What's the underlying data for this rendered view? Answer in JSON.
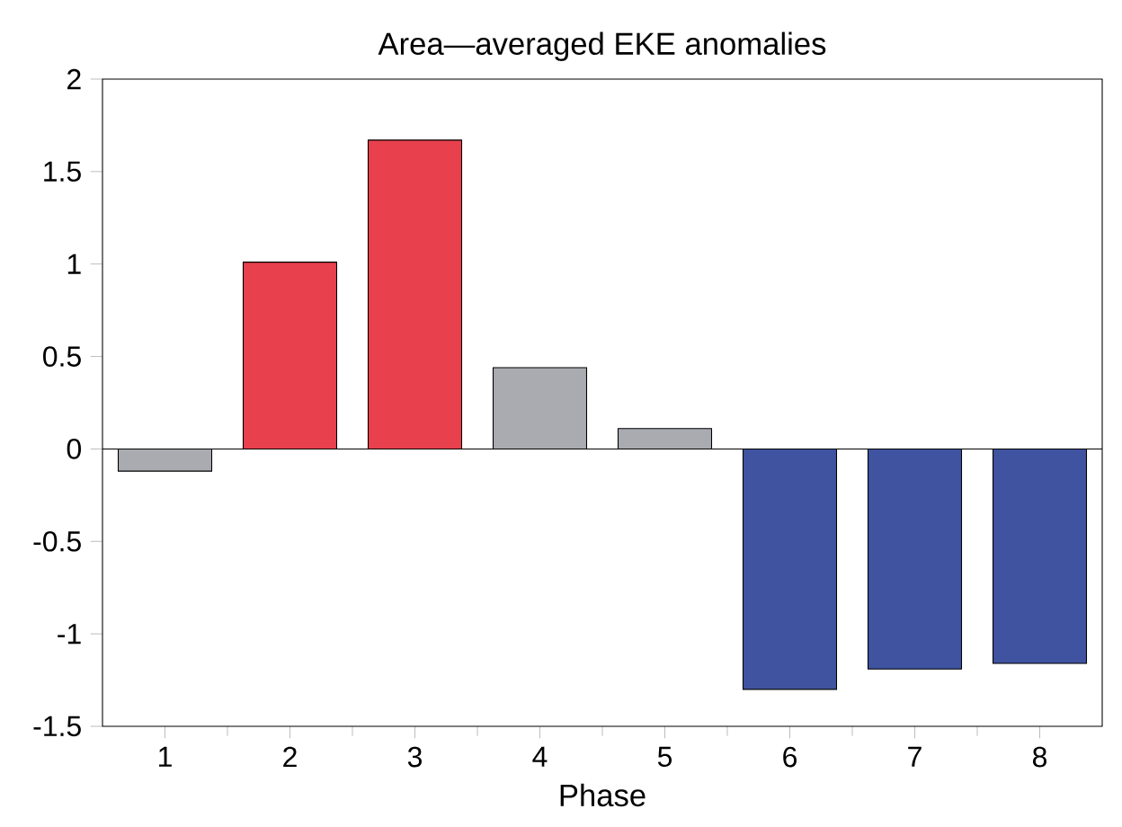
{
  "chart_data": {
    "type": "bar",
    "title": "Area—averaged EKE anomalies",
    "xlabel": "Phase",
    "categories": [
      "1",
      "2",
      "3",
      "4",
      "5",
      "6",
      "7",
      "8"
    ],
    "values": [
      -0.12,
      1.01,
      1.67,
      0.44,
      0.11,
      -1.3,
      -1.19,
      -1.16
    ],
    "colors": [
      "#a9abb0",
      "#e8404d",
      "#e8404d",
      "#a9abb0",
      "#a9abb0",
      "#3f53a0",
      "#3f53a0",
      "#3f53a0"
    ],
    "ylim": [
      -1.5,
      2
    ],
    "yticks": [
      -1.5,
      -1,
      -0.5,
      0,
      0.5,
      1,
      1.5,
      2
    ]
  }
}
